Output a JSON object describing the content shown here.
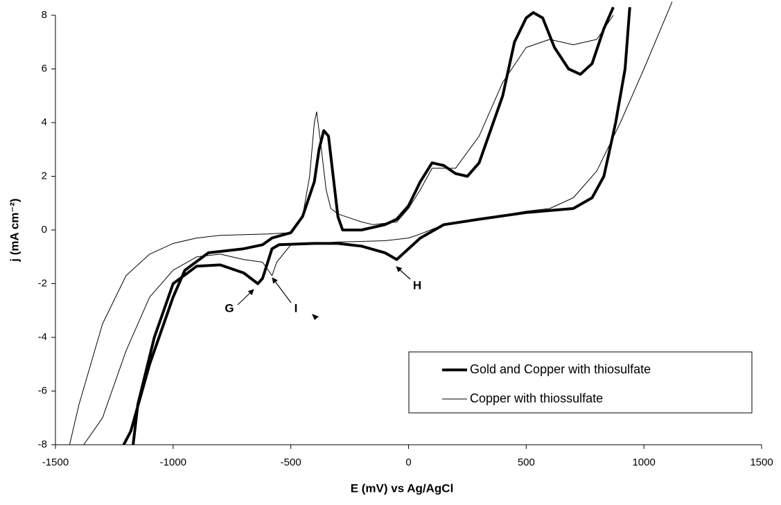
{
  "chart_data": {
    "type": "line",
    "xlabel": "E (mV) vs Ag/AgCl",
    "ylabel": "j (mA cm⁻²)",
    "xlim": [
      -1500,
      1500
    ],
    "xticks": [
      -1500,
      -1000,
      -500,
      0,
      500,
      1000,
      1500
    ],
    "ylim": [
      -8,
      8
    ],
    "yticks": [
      -8,
      -6,
      -4,
      -2,
      0,
      2,
      4,
      6,
      8
    ],
    "legend": "lower right",
    "annotations": [
      "G",
      "I",
      "H"
    ],
    "series": [
      {
        "name": "Gold and Copper with thiosulfate",
        "color": "#000000",
        "linewidth": 4,
        "x": [
          940,
          920,
          880,
          830,
          780,
          700,
          500,
          300,
          150,
          50,
          -50,
          -100,
          -200,
          -300,
          -400,
          -550,
          -580,
          -620,
          -640,
          -700,
          -800,
          -900,
          -1000,
          -1080,
          -1150,
          -1170,
          null,
          -1210,
          -1180,
          -1100,
          -1000,
          -950,
          -850,
          -800,
          -700,
          -620,
          -580,
          -500,
          -450,
          -400,
          -380,
          -360,
          -340,
          -320,
          -300,
          -280,
          -200,
          -100,
          -50,
          0,
          50,
          100,
          150,
          200,
          250,
          300,
          400,
          450,
          500,
          530,
          570,
          620,
          680,
          730,
          780,
          830,
          870
        ],
        "values": [
          8.3,
          6,
          4,
          2,
          1.2,
          0.8,
          0.65,
          0.4,
          0.2,
          -0.3,
          -1.1,
          -0.85,
          -0.6,
          -0.5,
          -0.5,
          -0.55,
          -0.7,
          -1.8,
          -2.0,
          -1.6,
          -1.3,
          -1.35,
          -2,
          -4,
          -6.5,
          -8,
          null,
          -8,
          -7.5,
          -5,
          -2.5,
          -1.5,
          -0.85,
          -0.8,
          -0.7,
          -0.55,
          -0.3,
          -0.1,
          0.5,
          1.8,
          3,
          3.7,
          3.5,
          2,
          0.5,
          0,
          0,
          0.2,
          0.4,
          0.9,
          1.8,
          2.5,
          2.4,
          2.1,
          2.0,
          2.5,
          5,
          7,
          7.9,
          8.1,
          7.9,
          6.8,
          6,
          5.8,
          6.2,
          7.5,
          8.3
        ]
      },
      {
        "name": "Copper with thiossulfate",
        "color": "#000000",
        "linewidth": 1,
        "x": [
          -1440,
          -1400,
          -1300,
          -1200,
          -1100,
          -1000,
          -900,
          -800,
          -600,
          -500,
          -450,
          -420,
          -400,
          -390,
          -370,
          -350,
          -330,
          -300,
          -200,
          -150,
          -50,
          0,
          50,
          100,
          200,
          300,
          400,
          500,
          600,
          700,
          800,
          870,
          null,
          1120,
          1000,
          900,
          800,
          700,
          600,
          500,
          300,
          150,
          50,
          0,
          -100,
          -300,
          -500,
          -560,
          -580,
          -620,
          -700,
          -800,
          -900,
          -1000,
          -1100,
          -1200,
          -1300,
          -1380
        ],
        "values": [
          -8,
          -6.5,
          -3.5,
          -1.7,
          -0.9,
          -0.5,
          -0.3,
          -0.2,
          -0.15,
          -0.1,
          0.5,
          2,
          4,
          4.4,
          3,
          1.5,
          0.8,
          0.6,
          0.3,
          0.2,
          0.3,
          0.8,
          1.5,
          2.3,
          2.3,
          3.5,
          5.5,
          6.8,
          7.1,
          6.9,
          7.1,
          8.0,
          null,
          8.5,
          6,
          4,
          2.2,
          1.2,
          0.8,
          0.7,
          0.4,
          0.2,
          -0.15,
          -0.3,
          -0.4,
          -0.45,
          -0.55,
          -1.2,
          -1.7,
          -1.2,
          -1.1,
          -0.9,
          -1.0,
          -1.5,
          -2.5,
          -4.5,
          -7,
          -8
        ]
      }
    ]
  }
}
